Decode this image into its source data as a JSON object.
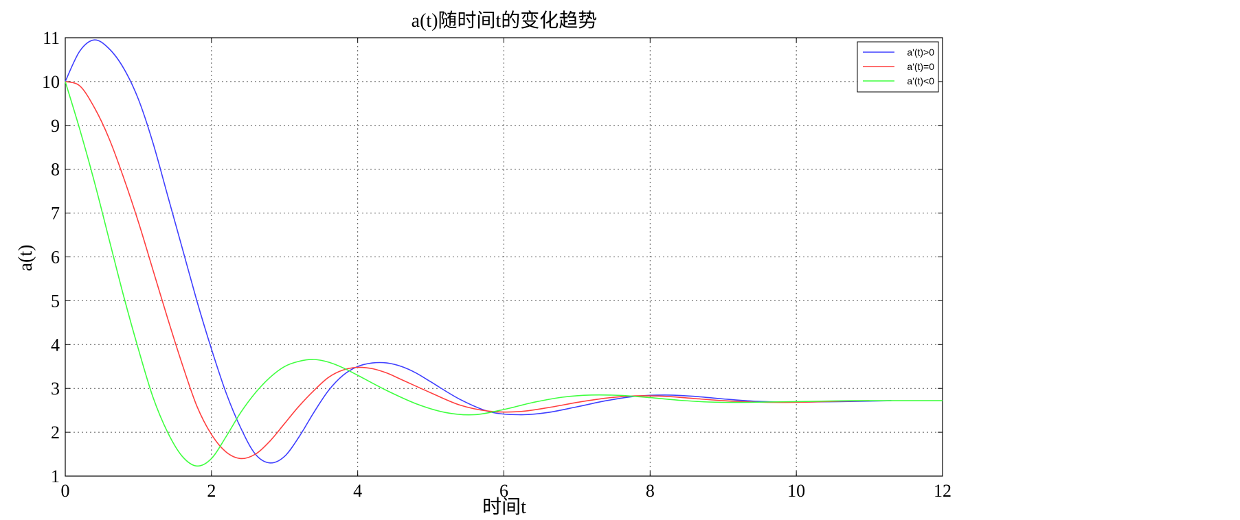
{
  "chart_data": {
    "type": "line",
    "title": "a(t)随时间t的变化趋势",
    "xlabel": "时间t",
    "ylabel": "a(t)",
    "xlim": [
      0,
      12
    ],
    "ylim": [
      1,
      11
    ],
    "xticks": [
      0,
      2,
      4,
      6,
      8,
      10,
      12
    ],
    "yticks": [
      1,
      2,
      3,
      4,
      5,
      6,
      7,
      8,
      9,
      10,
      11
    ],
    "grid": true,
    "legend_position": "top-right",
    "series": [
      {
        "name": "a'(t)>0",
        "color": "#3f3fff",
        "x": [
          0,
          0.2,
          0.4,
          0.6,
          0.8,
          1.0,
          1.2,
          1.4,
          1.6,
          1.8,
          2.0,
          2.2,
          2.4,
          2.6,
          2.8,
          3.0,
          3.2,
          3.4,
          3.6,
          3.8,
          4.0,
          4.2,
          4.4,
          4.6,
          4.8,
          5.0,
          5.4,
          5.8,
          6.2,
          6.6,
          7.0,
          7.4,
          7.8,
          8.2,
          8.6,
          9.0,
          9.4,
          9.8,
          10.2,
          10.6,
          11.0,
          11.3
        ],
        "values": [
          10.0,
          10.7,
          10.95,
          10.75,
          10.3,
          9.6,
          8.6,
          7.4,
          6.2,
          5.0,
          3.9,
          2.9,
          2.1,
          1.5,
          1.3,
          1.45,
          1.9,
          2.45,
          2.95,
          3.3,
          3.5,
          3.58,
          3.58,
          3.5,
          3.35,
          3.15,
          2.75,
          2.47,
          2.4,
          2.45,
          2.58,
          2.72,
          2.82,
          2.85,
          2.82,
          2.76,
          2.71,
          2.69,
          2.69,
          2.7,
          2.71,
          2.72
        ]
      },
      {
        "name": "a'(t)=0",
        "color": "#ff3f3f",
        "x": [
          0,
          0.2,
          0.4,
          0.6,
          0.8,
          1.0,
          1.2,
          1.4,
          1.6,
          1.8,
          2.0,
          2.2,
          2.4,
          2.6,
          2.8,
          3.0,
          3.2,
          3.4,
          3.6,
          3.8,
          4.0,
          4.2,
          4.4,
          4.6,
          5.0,
          5.4,
          5.8,
          6.2,
          6.6,
          7.0,
          7.4,
          7.8,
          8.2,
          8.6,
          9.0,
          9.4,
          9.8,
          10.2,
          10.6,
          11.0
        ],
        "values": [
          10.0,
          9.9,
          9.4,
          8.7,
          7.8,
          6.8,
          5.7,
          4.6,
          3.55,
          2.6,
          1.95,
          1.55,
          1.4,
          1.5,
          1.8,
          2.2,
          2.6,
          2.95,
          3.25,
          3.42,
          3.48,
          3.45,
          3.35,
          3.2,
          2.9,
          2.62,
          2.48,
          2.47,
          2.56,
          2.68,
          2.78,
          2.83,
          2.82,
          2.77,
          2.72,
          2.69,
          2.68,
          2.69,
          2.71,
          2.72
        ]
      },
      {
        "name": "a'(t)<0",
        "color": "#3fff3f",
        "x": [
          0,
          0.2,
          0.4,
          0.6,
          0.8,
          1.0,
          1.2,
          1.4,
          1.6,
          1.8,
          2.0,
          2.2,
          2.4,
          2.6,
          2.8,
          3.0,
          3.2,
          3.4,
          3.6,
          3.8,
          4.0,
          4.4,
          4.8,
          5.2,
          5.6,
          6.0,
          6.4,
          6.8,
          7.2,
          7.6,
          8.0,
          8.4,
          8.8,
          9.2,
          9.6,
          10.0,
          10.4,
          10.8,
          11.2,
          11.6,
          12.0
        ],
        "values": [
          10.0,
          8.9,
          7.7,
          6.4,
          5.1,
          3.9,
          2.8,
          2.0,
          1.45,
          1.23,
          1.4,
          1.9,
          2.45,
          2.9,
          3.25,
          3.5,
          3.62,
          3.66,
          3.6,
          3.47,
          3.3,
          2.95,
          2.65,
          2.45,
          2.4,
          2.52,
          2.68,
          2.8,
          2.85,
          2.84,
          2.79,
          2.73,
          2.69,
          2.68,
          2.69,
          2.7,
          2.71,
          2.72,
          2.72,
          2.72,
          2.72
        ]
      }
    ]
  }
}
